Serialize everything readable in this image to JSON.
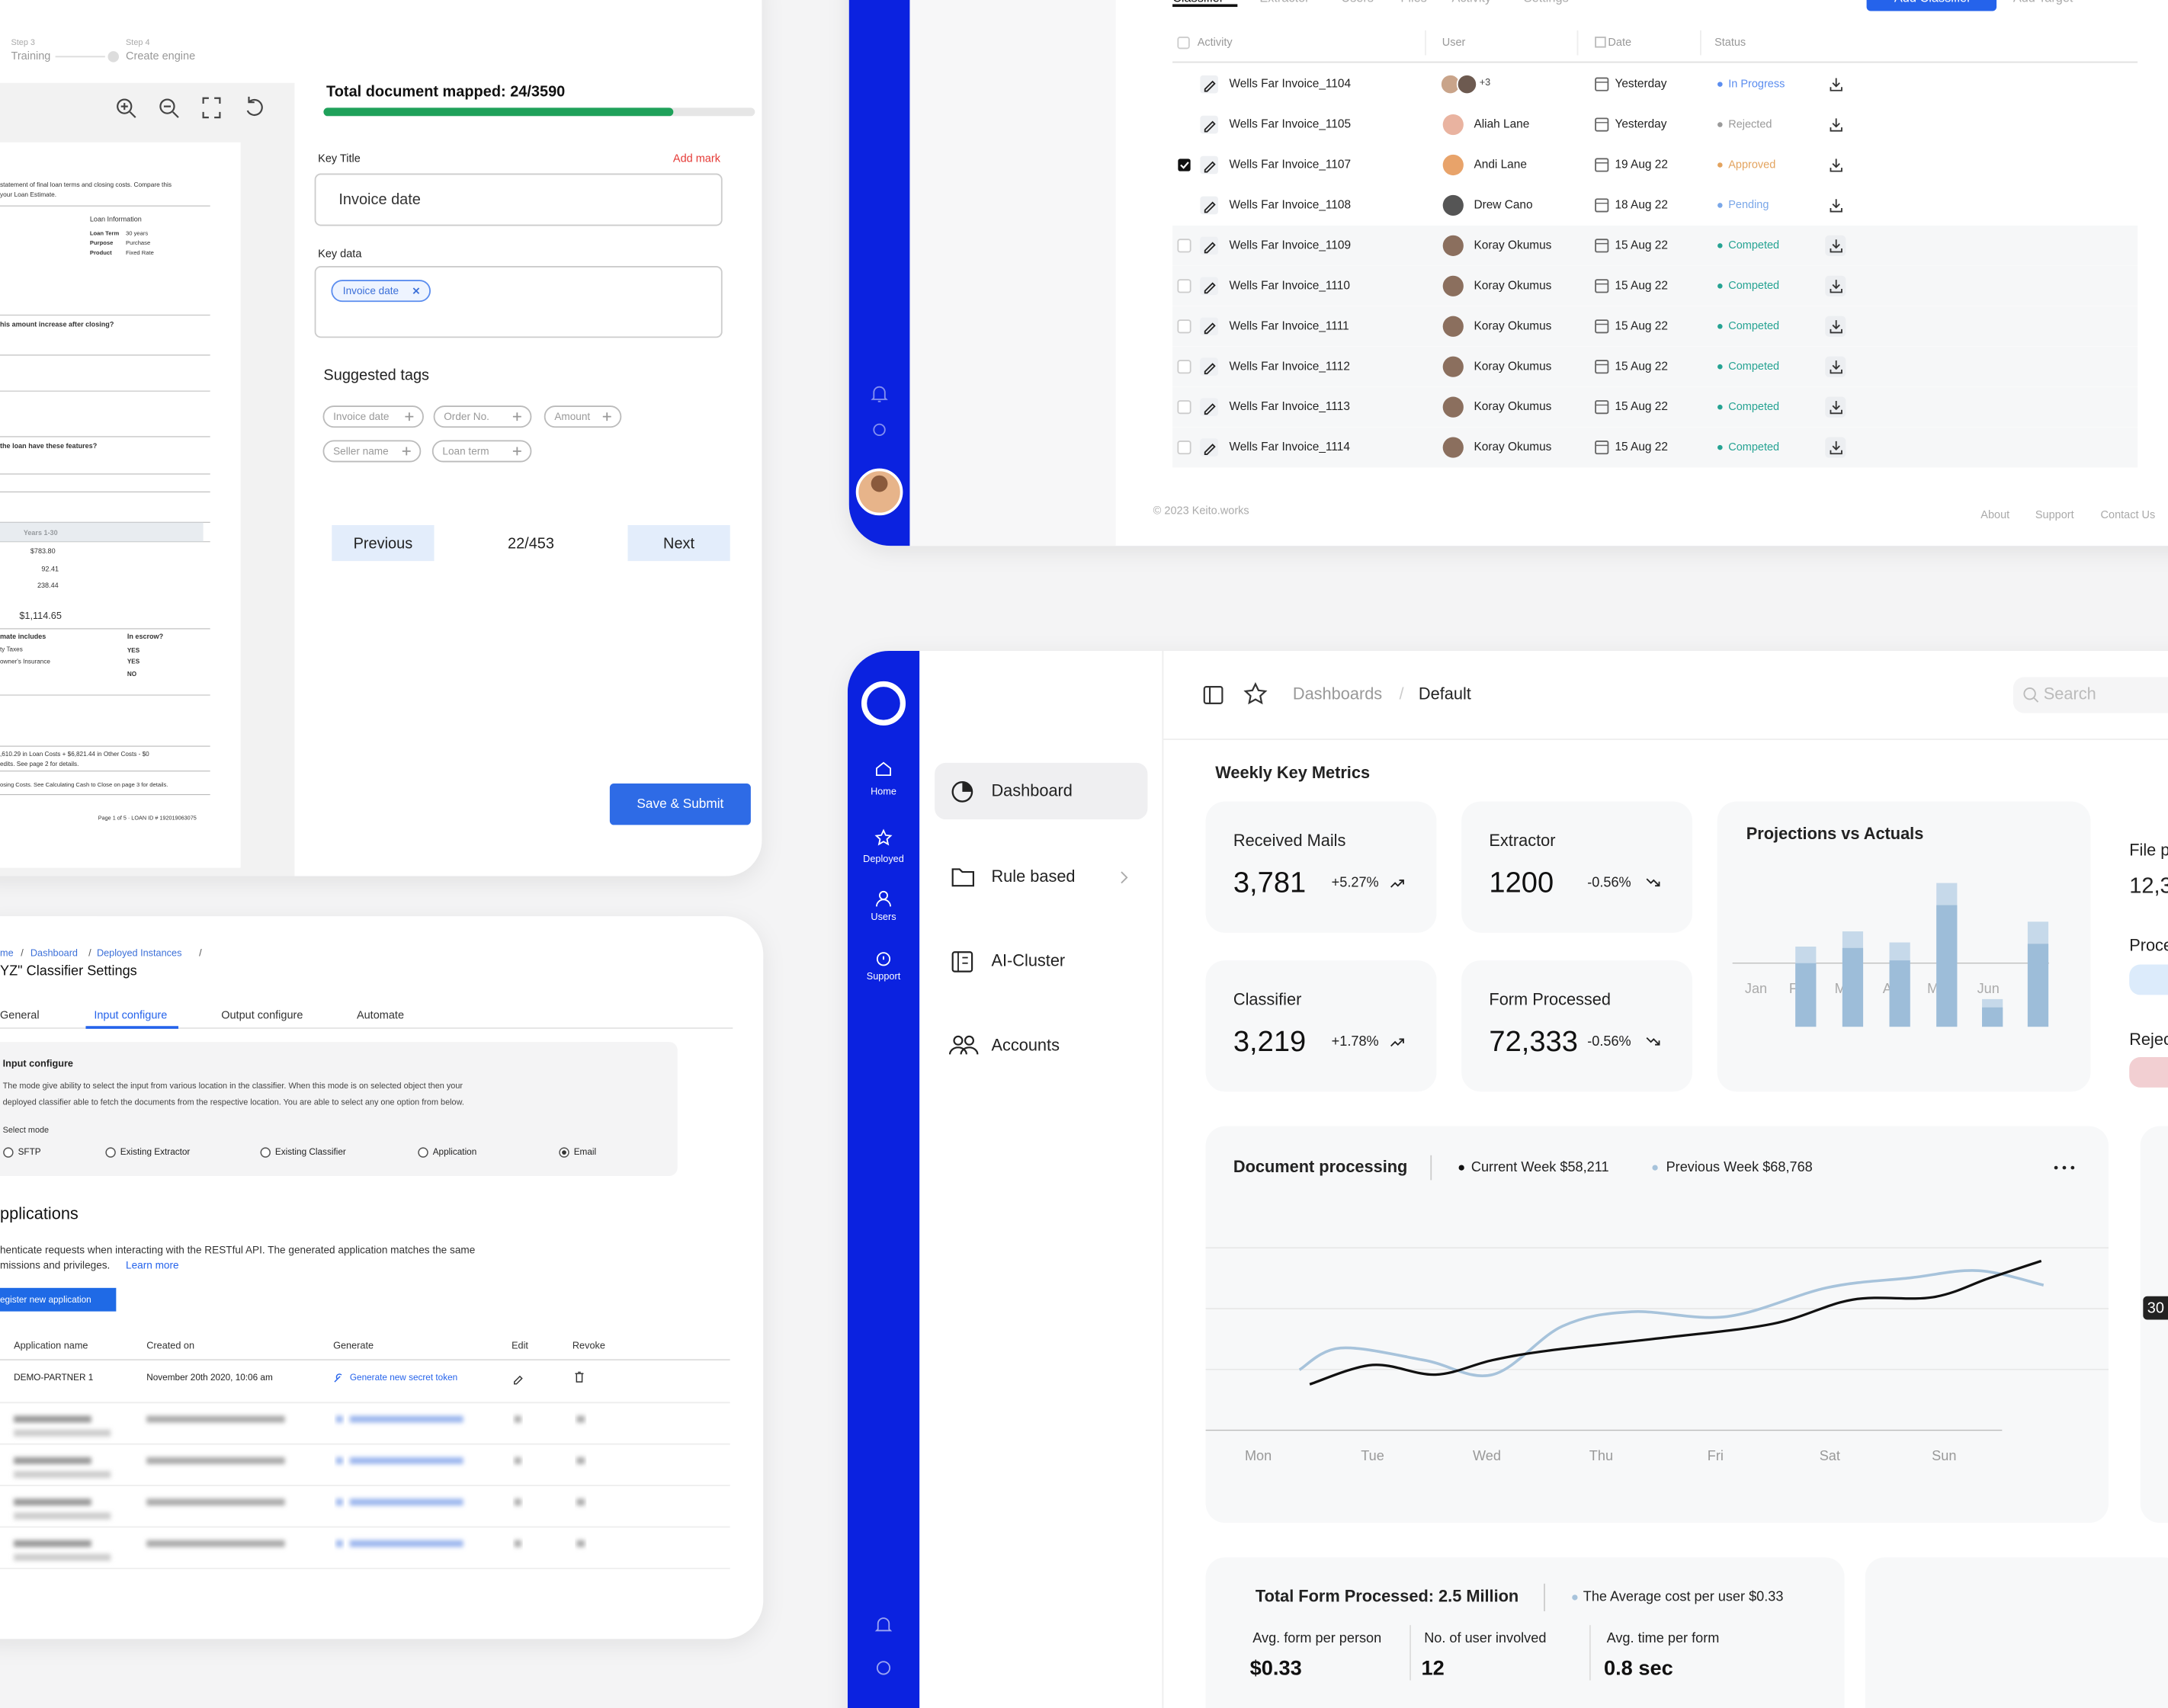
{
  "document_mapping": {
    "steps": [
      {
        "number": "Step 3",
        "name": "Training"
      },
      {
        "number": "Step 4",
        "name": "Create engine"
      }
    ],
    "progress_title": "Total document  mapped: 24/3590",
    "key_title": {
      "label": "Key Title",
      "action": "Add mark",
      "value": "Invoice date"
    },
    "key_data": {
      "label": "Key data",
      "chips": [
        "Invoice date"
      ]
    },
    "suggested_tags": {
      "title": "Suggested tags",
      "tags": [
        "Invoice date",
        "Order No.",
        "Amount",
        "Seller name",
        "Loan term"
      ]
    },
    "pager": {
      "previous": "Previous",
      "position": "22/453",
      "next": "Next"
    },
    "submit": "Save & Submit",
    "preview_lines": [
      "statement of final loan terms and closing costs. Compare this",
      "your Loan Estimate.",
      "Loan Information",
      "Loan Term",
      "30 years",
      "Purpose",
      "Purchase",
      "Product",
      "Fixed Rate",
      "his amount increase after closing?",
      "the loan have these features?",
      "Years 1-30",
      "$783.80",
      "92.41",
      "238.44",
      "$1,114.65",
      "mate includes",
      "In escrow?",
      "YES",
      "YES",
      "NO",
      "ty Taxes",
      "owner's Insurance",
      ",610.29 in Loan Costs + $6,821.44 in Other Costs - $0",
      "edits. See page 2 for details.",
      "osing Costs. See Calculating Cash to Close on page 3 for details.",
      "Page 1 of 5 · LOAN ID # 192019063075"
    ]
  },
  "review_table": {
    "tabs": [
      "Classifier",
      "Extractor",
      "Users",
      "Files",
      "Activity",
      "Settings"
    ],
    "buttons": [
      "Add Classifier",
      "Add Target"
    ],
    "columns": [
      "Activity",
      "User",
      "Date",
      "Status"
    ],
    "rows": [
      {
        "activity": "Wells Far Invoice_1104",
        "user": "+3",
        "date": "Yesterday",
        "status": "In Progress",
        "color": "#5b8def"
      },
      {
        "activity": "Wells Far Invoice_1105",
        "user": "Aliah Lane",
        "date": "Yesterday",
        "status": "Rejected",
        "color": "#9a9a9a"
      },
      {
        "activity": "Wells Far Invoice_1107",
        "user": "Andi Lane",
        "date": "19 Aug 22",
        "status": "Approved",
        "color": "#e3a35e"
      },
      {
        "activity": "Wells Far Invoice_1108",
        "user": "Drew Cano",
        "date": "18 Aug 22",
        "status": "Pending",
        "color": "#7aa7e8"
      },
      {
        "activity": "Wells Far Invoice_1109",
        "user": "Koray Okumus",
        "date": "15 Aug 22",
        "status": "Competed",
        "color": "#26a393"
      },
      {
        "activity": "Wells Far Invoice_1110",
        "user": "Koray Okumus",
        "date": "15 Aug 22",
        "status": "Competed",
        "color": "#26a393"
      },
      {
        "activity": "Wells Far Invoice_1111",
        "user": "Koray Okumus",
        "date": "15 Aug 22",
        "status": "Competed",
        "color": "#26a393"
      },
      {
        "activity": "Wells Far Invoice_1112",
        "user": "Koray Okumus",
        "date": "15 Aug 22",
        "status": "Competed",
        "color": "#26a393"
      },
      {
        "activity": "Wells Far Invoice_1113",
        "user": "Koray Okumus",
        "date": "15 Aug 22",
        "status": "Competed",
        "color": "#26a393"
      },
      {
        "activity": "Wells Far Invoice_1114",
        "user": "Koray Okumus",
        "date": "15 Aug 22",
        "status": "Competed",
        "color": "#26a393"
      }
    ],
    "footer": {
      "copyright": "© 2023 Keito.works",
      "links": [
        "About",
        "Support",
        "Contact Us"
      ]
    }
  },
  "classifier_settings": {
    "breadcrumb": [
      "me",
      "/",
      "Dashboard",
      "/",
      "Deployed Instances",
      "/"
    ],
    "title": "YZ\" Classifier Settings",
    "tabs": [
      "General",
      "Input configure",
      "Output configure",
      "Automate"
    ],
    "input_configure": {
      "title": "Input configure",
      "description": [
        "The mode give ability to select the input from various location in the classifier. When this mode is on selected object then your",
        "deployed classifier able to fetch the documents from the respective location. You are able to select any one option from below."
      ],
      "select_label": "Select mode",
      "options": [
        "SFTP",
        "Existing Extractor",
        "Existing Classifier",
        "Application",
        "Email"
      ]
    },
    "applications": {
      "title": "pplications",
      "description": [
        "henticate requests when interacting with the RESTful API. The generated application matches the same",
        "missions and privileges."
      ],
      "link": "Learn more",
      "button": "egister new application",
      "columns": [
        "Application name",
        "Created on",
        "Generate",
        "Edit",
        "Revoke"
      ],
      "row": {
        "name": "DEMO-PARTNER 1",
        "created": "November 20th 2020, 10:06 am",
        "generate": "Generate new secret token"
      }
    }
  },
  "dashboard": {
    "nav": [
      "Home",
      "Deployed",
      "Users",
      "Support"
    ],
    "menu": [
      "Dashboard",
      "Rule based",
      "AI-Cluster",
      "Accounts"
    ],
    "breadcrumb": [
      "Dashboards",
      "/",
      "Default"
    ],
    "search": "Search",
    "section_title": "Weekly Key Metrics",
    "metrics": [
      {
        "title": "Received Mails",
        "value": "3,781",
        "change": "+5.27%"
      },
      {
        "title": "Extractor",
        "value": "1200",
        "change": "-0.56%"
      },
      {
        "title": "Classifier",
        "value": "3,219",
        "change": "+1.78%"
      },
      {
        "title": "Form Processed",
        "value": "72,333",
        "change": "-0.56%"
      }
    ],
    "projections": {
      "type": "bar",
      "title": "Projections vs Actuals",
      "categories": [
        "Jan",
        "F",
        "M",
        "A",
        "M",
        "Jun"
      ],
      "series": [
        {
          "color": "#c6d9ea",
          "values": [
            58,
            69,
            61,
            104,
            20,
            76
          ]
        },
        {
          "color": "#9dbdd9",
          "values": [
            46,
            57,
            48,
            88,
            14,
            60
          ]
        }
      ],
      "ylim": [
        0,
        120
      ]
    },
    "side_cards": [
      "File p",
      "12,3",
      "Proce",
      "Rejec"
    ],
    "document_processing": {
      "type": "line",
      "title": "Document processing",
      "series": [
        {
          "name": "Current Week $58,211",
          "color": "#111111",
          "x": [
            0.45,
            1,
            1.55,
            2.05,
            2.55,
            3.5,
            4.5,
            5.2,
            5.9,
            6.4,
            6.85
          ],
          "values": [
            19,
            27,
            23,
            29,
            33,
            38,
            44,
            54,
            55,
            63,
            70
          ]
        },
        {
          "name": "Previous Week $68,768",
          "color": "#a7c3db",
          "x": [
            0.36,
            0.72,
            1.45,
            2.05,
            2.66,
            3.27,
            4.1,
            4.98,
            5.7,
            6.3,
            6.87
          ],
          "values": [
            25,
            34,
            29,
            23,
            43,
            49,
            47,
            59,
            63,
            66,
            60
          ]
        }
      ],
      "xticks": [
        {
          "value": 0,
          "label": "Mon"
        },
        {
          "value": 1,
          "label": "Tue"
        },
        {
          "value": 2,
          "label": "Wed"
        },
        {
          "value": 3,
          "label": "Thu"
        },
        {
          "value": 4,
          "label": "Fri"
        },
        {
          "value": 5,
          "label": "Sat"
        },
        {
          "value": 6,
          "label": "Sun"
        }
      ],
      "xlim": [
        -0.5,
        7.4
      ],
      "ylim": [
        0,
        100
      ]
    },
    "tooltip": "30",
    "summary": {
      "title": "Total Form Processed: 2.5 Million",
      "note": "The Average cost per user $0.33",
      "stats": [
        {
          "label": "Avg. form per person",
          "value": "$0.33"
        },
        {
          "label": "No. of user involved",
          "value": "12"
        },
        {
          "label": "Avg. time per form",
          "value": "0.8 sec"
        }
      ]
    }
  }
}
